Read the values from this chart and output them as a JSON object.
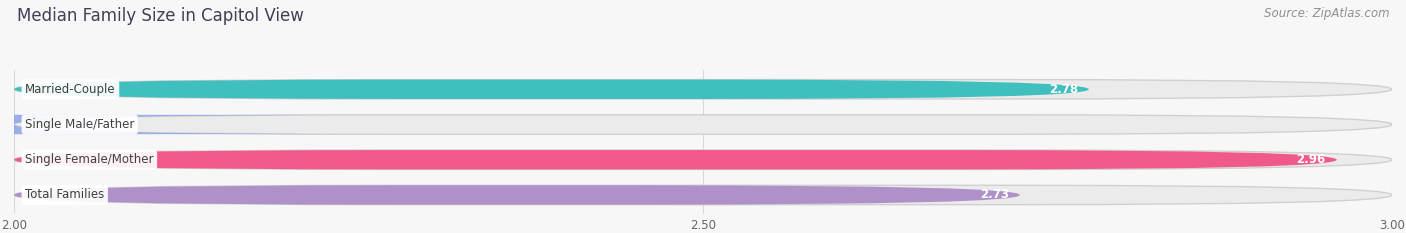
{
  "title": "Median Family Size in Capitol View",
  "source": "Source: ZipAtlas.com",
  "categories": [
    "Married-Couple",
    "Single Male/Father",
    "Single Female/Mother",
    "Total Families"
  ],
  "values": [
    2.78,
    2.0,
    2.96,
    2.73
  ],
  "colors": [
    "#40bfbf",
    "#99aee8",
    "#f05a8a",
    "#b090c8"
  ],
  "xlim": [
    2.0,
    3.0
  ],
  "xticks": [
    2.0,
    2.5,
    3.0
  ],
  "bar_height": 0.55,
  "bar_gap": 0.45,
  "background_color": "#f7f7f7",
  "bar_bg_color": "#e4e4e4",
  "title_color": "#404055",
  "source_color": "#909090",
  "label_color": "#404040",
  "value_color_inside": "#ffffff",
  "value_color_outside": "#606060",
  "title_fontsize": 12,
  "source_fontsize": 8.5,
  "label_fontsize": 8.5,
  "value_fontsize": 8.5,
  "tick_fontsize": 8.5,
  "grid_color": "#d8d8d8"
}
